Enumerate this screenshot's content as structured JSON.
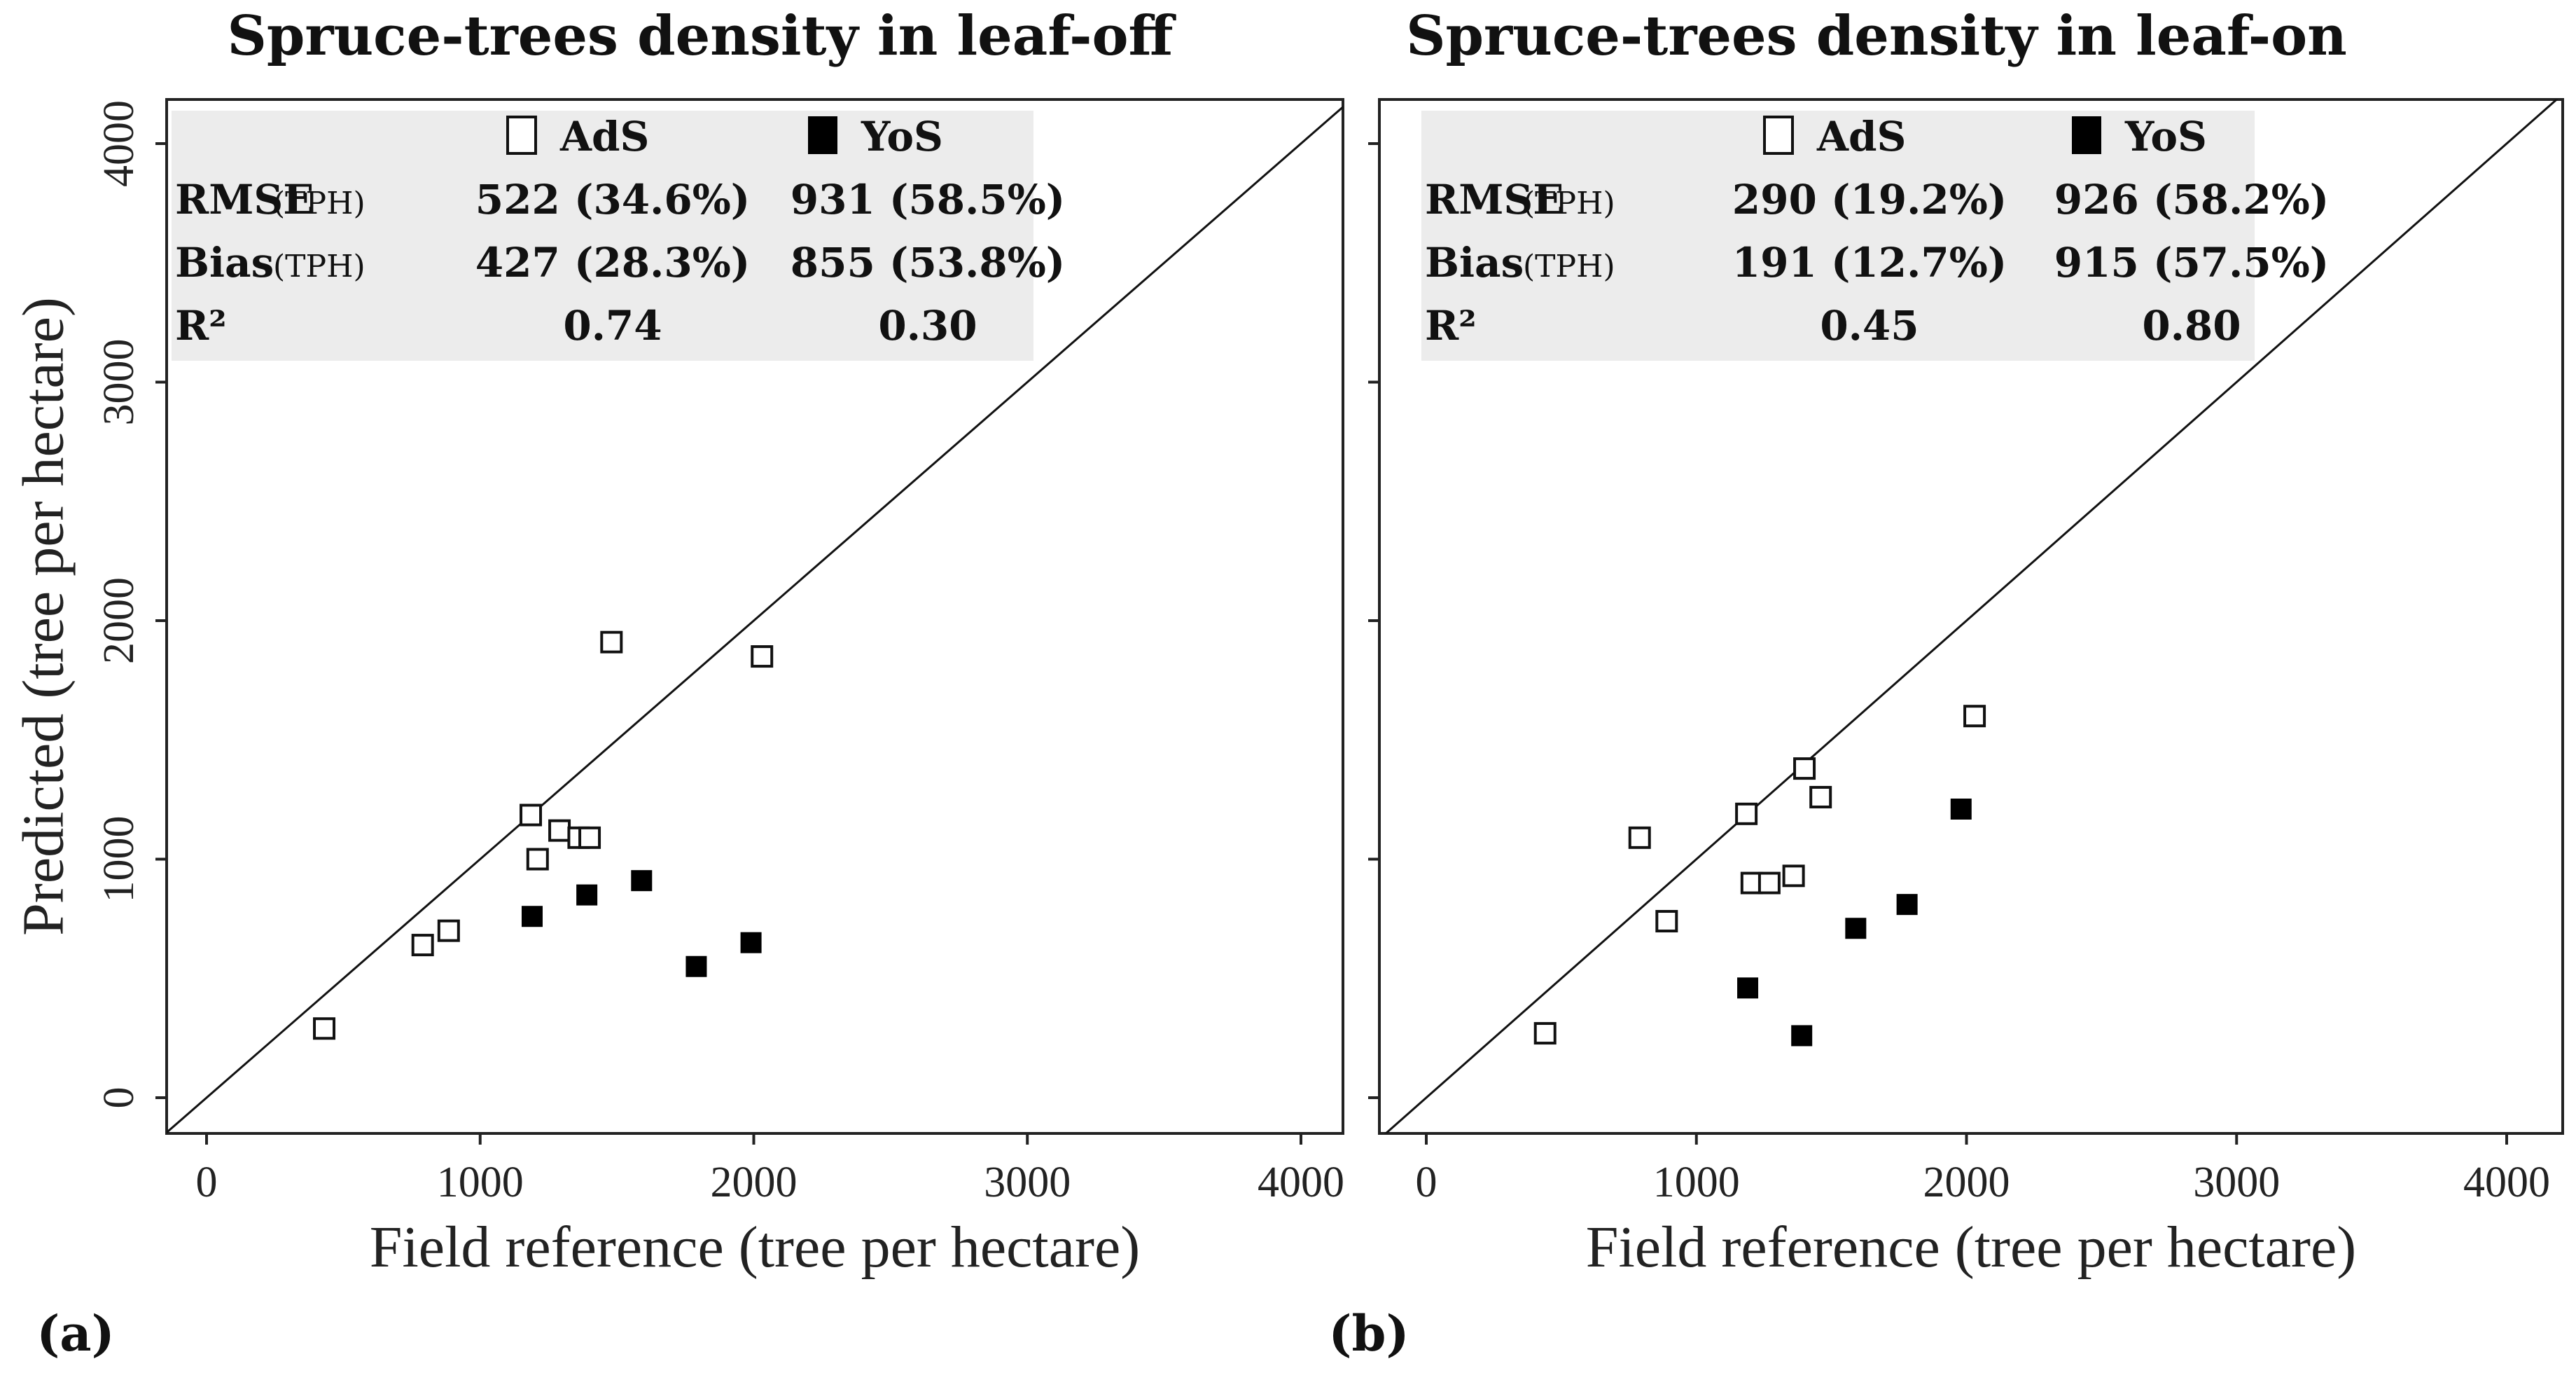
{
  "chart_data": [
    {
      "type": "scatter",
      "panel_label": "(a)",
      "title": "Spruce-trees density in leaf-off",
      "xlabel": "Field reference (tree per hectare)",
      "ylabel": "Predicted (tree per hectare)",
      "xlim": [
        0,
        4000
      ],
      "ylim": [
        0,
        4000
      ],
      "xticks": [
        "0",
        "1000",
        "2000",
        "3000",
        "4000"
      ],
      "yticks": [
        "0",
        "1000",
        "2000",
        "3000",
        "4000"
      ],
      "reference_line": "1:1",
      "legend": [
        {
          "name": "AdS",
          "marker": "open-square"
        },
        {
          "name": "YoS",
          "marker": "filled-square"
        }
      ],
      "stats": {
        "rows": [
          {
            "label": "RMSE",
            "unit": "(TPH)",
            "ads": "522 (34.6%)",
            "yos": "931 (58.5%)"
          },
          {
            "label": "Bias",
            "unit": "(TPH)",
            "ads": "427 (28.3%)",
            "yos": "855 (53.8%)"
          },
          {
            "label": "R²",
            "unit": "",
            "ads": "0.74",
            "yos": "0.30"
          }
        ]
      },
      "series": [
        {
          "name": "AdS",
          "marker": "open-square",
          "points": [
            [
              430,
              290
            ],
            [
              790,
              640
            ],
            [
              885,
              700
            ],
            [
              1185,
              1185
            ],
            [
              1210,
              1000
            ],
            [
              1290,
              1120
            ],
            [
              1360,
              1090
            ],
            [
              1400,
              1090
            ],
            [
              1480,
              1910
            ],
            [
              2030,
              1850
            ]
          ]
        },
        {
          "name": "YoS",
          "marker": "filled-square",
          "points": [
            [
              1190,
              760
            ],
            [
              1390,
              850
            ],
            [
              1590,
              910
            ],
            [
              1790,
              550
            ],
            [
              1990,
              650
            ]
          ]
        }
      ]
    },
    {
      "type": "scatter",
      "panel_label": "(b)",
      "title": "Spruce-trees density in leaf-on",
      "xlabel": "Field reference (tree per hectare)",
      "ylabel": "",
      "xlim": [
        0,
        4000
      ],
      "ylim": [
        0,
        4000
      ],
      "xticks": [
        "0",
        "1000",
        "2000",
        "3000",
        "4000"
      ],
      "yticks": [],
      "reference_line": "1:1",
      "legend": [
        {
          "name": "AdS",
          "marker": "open-square"
        },
        {
          "name": "YoS",
          "marker": "filled-square"
        }
      ],
      "stats": {
        "rows": [
          {
            "label": "RMSE",
            "unit": "(TPH)",
            "ads": "290 (19.2%)",
            "yos": "926 (58.2%)"
          },
          {
            "label": "Bias",
            "unit": "(TPH)",
            "ads": "191 (12.7%)",
            "yos": "915 (57.5%)"
          },
          {
            "label": "R²",
            "unit": "",
            "ads": "0.45",
            "yos": "0.80"
          }
        ]
      },
      "series": [
        {
          "name": "AdS",
          "marker": "open-square",
          "points": [
            [
              440,
              270
            ],
            [
              790,
              1090
            ],
            [
              890,
              740
            ],
            [
              1185,
              1190
            ],
            [
              1205,
              900
            ],
            [
              1270,
              900
            ],
            [
              1360,
              930
            ],
            [
              1400,
              1380
            ],
            [
              1460,
              1260
            ],
            [
              2030,
              1600
            ]
          ]
        },
        {
          "name": "YoS",
          "marker": "filled-square",
          "points": [
            [
              1190,
              460
            ],
            [
              1390,
              260
            ],
            [
              1590,
              710
            ],
            [
              1780,
              810
            ],
            [
              1980,
              1210
            ]
          ]
        }
      ]
    }
  ]
}
